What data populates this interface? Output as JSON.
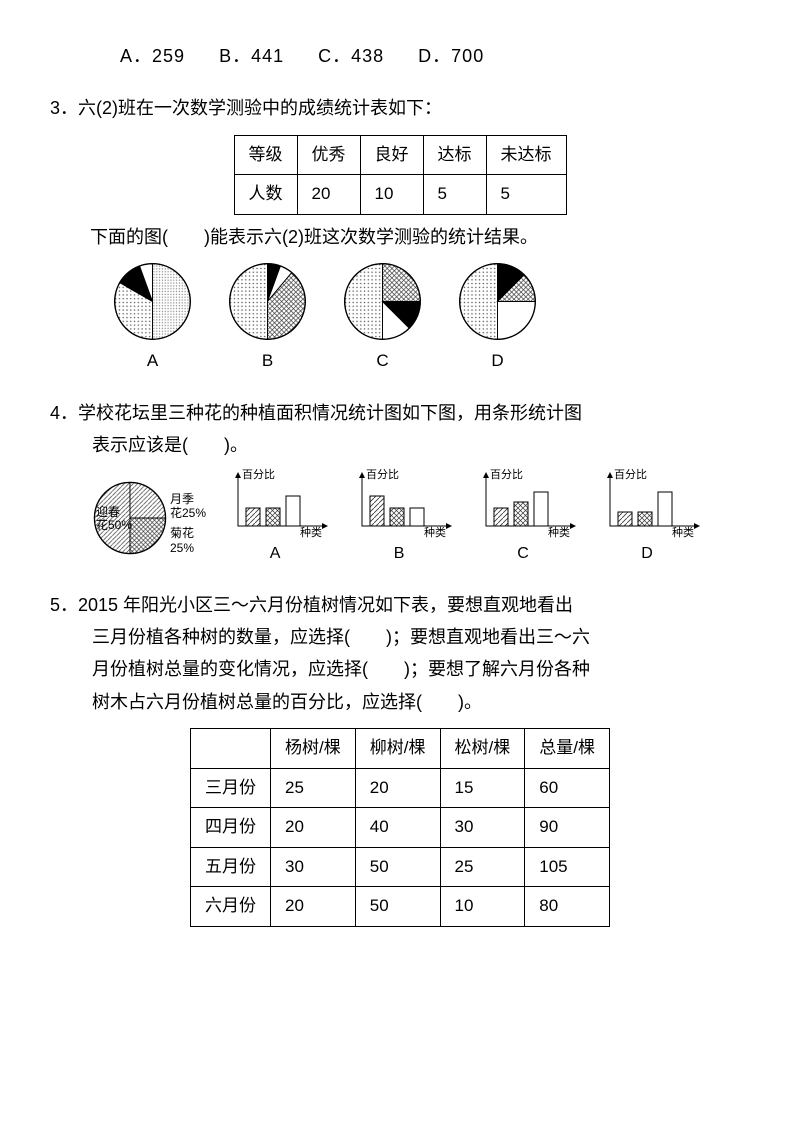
{
  "q2options": {
    "A": "A．259",
    "B": "B．441",
    "C": "C．438",
    "D": "D．700"
  },
  "q3": {
    "num": "3．",
    "text": "六(2)班在一次数学测验中的成绩统计表如下：",
    "table": {
      "headers": [
        "等级",
        "优秀",
        "良好",
        "达标",
        "未达标"
      ],
      "row": [
        "人数",
        "20",
        "10",
        "5",
        "5"
      ]
    },
    "subline": "下面的图(　　)能表示六(2)班这次数学测验的统计结果。",
    "pies": {
      "A": {
        "label": "A",
        "slices": [
          {
            "start": 180,
            "end": 300,
            "pattern": "dots"
          },
          {
            "start": 300,
            "end": 340,
            "pattern": "solid"
          },
          {
            "start": 340,
            "end": 360,
            "pattern": "white"
          },
          {
            "start": 0,
            "end": 180,
            "pattern": "dots2"
          }
        ]
      },
      "B": {
        "label": "B",
        "slices": [
          {
            "start": 180,
            "end": 360,
            "pattern": "dots"
          },
          {
            "start": 0,
            "end": 20,
            "pattern": "solid"
          },
          {
            "start": 20,
            "end": 40,
            "pattern": "white"
          },
          {
            "start": 40,
            "end": 180,
            "pattern": "cross"
          }
        ]
      },
      "C": {
        "label": "C",
        "slices": [
          {
            "start": 180,
            "end": 360,
            "pattern": "dots"
          },
          {
            "start": 0,
            "end": 90,
            "pattern": "cross"
          },
          {
            "start": 90,
            "end": 135,
            "pattern": "solid"
          },
          {
            "start": 135,
            "end": 180,
            "pattern": "white"
          }
        ]
      },
      "D": {
        "label": "D",
        "slices": [
          {
            "start": 180,
            "end": 360,
            "pattern": "dots"
          },
          {
            "start": 0,
            "end": 45,
            "pattern": "solid"
          },
          {
            "start": 45,
            "end": 90,
            "pattern": "cross"
          },
          {
            "start": 90,
            "end": 180,
            "pattern": "white"
          }
        ]
      }
    }
  },
  "q4": {
    "num": "4．",
    "text1": "学校花坛里三种花的种植面积情况统计图如下图，用条形统计图",
    "text2": "表示应该是(　　)。",
    "pie_legend": {
      "yingchun": "迎春\n花50%",
      "yueji": "月季\n花25%",
      "juhua": "菊花\n25%"
    },
    "axis_y": "百分比",
    "axis_x": "种类",
    "bars": {
      "A": {
        "label": "A",
        "heights": [
          18,
          18,
          30
        ],
        "patterns": [
          "hatch",
          "cross",
          "white"
        ]
      },
      "B": {
        "label": "B",
        "heights": [
          30,
          18,
          18
        ],
        "patterns": [
          "hatch",
          "cross",
          "white"
        ]
      },
      "C": {
        "label": "C",
        "heights": [
          18,
          24,
          34
        ],
        "patterns": [
          "hatch",
          "cross",
          "white"
        ]
      },
      "D": {
        "label": "D",
        "heights": [
          14,
          14,
          34
        ],
        "patterns": [
          "hatch",
          "cross",
          "white"
        ]
      }
    }
  },
  "q5": {
    "num": "5．",
    "line1": "2015 年阳光小区三～六月份植树情况如下表，要想直观地看出",
    "line2": "三月份植各种树的数量，应选择(　　)；要想直观地看出三～六",
    "line3": "月份植树总量的变化情况，应选择(　　)；要想了解六月份各种",
    "line4": "树木占六月份植树总量的百分比，应选择(　　)。",
    "table": {
      "headers": [
        "",
        "杨树/棵",
        "柳树/棵",
        "松树/棵",
        "总量/棵"
      ],
      "rows": [
        [
          "三月份",
          "25",
          "20",
          "15",
          "60"
        ],
        [
          "四月份",
          "20",
          "40",
          "30",
          "90"
        ],
        [
          "五月份",
          "30",
          "50",
          "25",
          "105"
        ],
        [
          "六月份",
          "20",
          "50",
          "10",
          "80"
        ]
      ]
    }
  },
  "colors": {
    "stroke": "#000000",
    "bg": "#ffffff"
  }
}
